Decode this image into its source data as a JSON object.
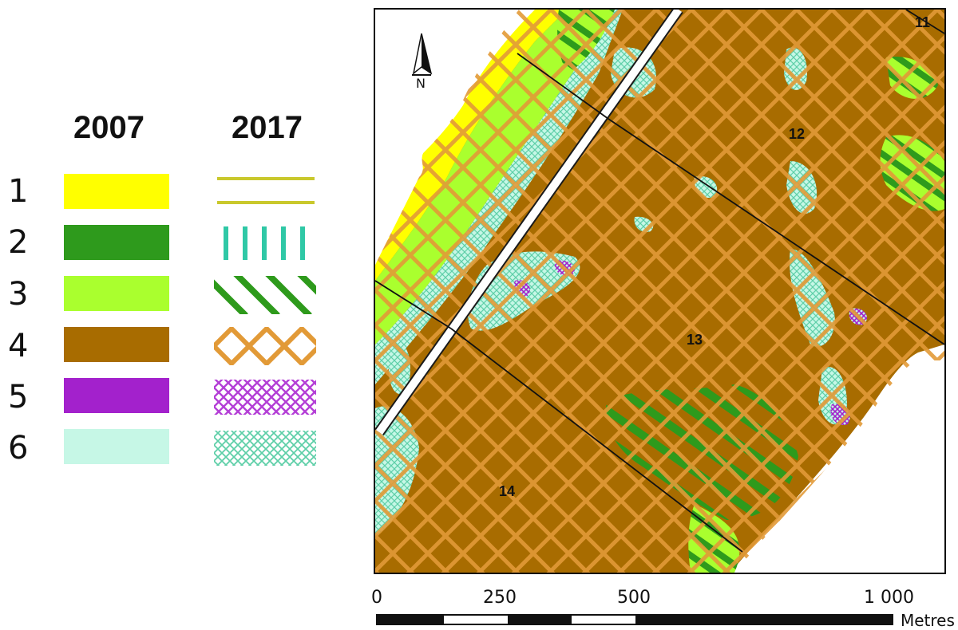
{
  "legend": {
    "year_2007": "2007",
    "year_2017": "2017",
    "classes": [
      {
        "number": "1",
        "color_2007": "#ffff00",
        "pattern_2017": "double-line"
      },
      {
        "number": "2",
        "color_2007": "#2e9a1c",
        "pattern_2017": "vertical-bars"
      },
      {
        "number": "3",
        "color_2007": "#aaff2e",
        "pattern_2017": "diagonal-stripes"
      },
      {
        "number": "4",
        "color_2007": "#a86c00",
        "pattern_2017": "diamond-lattice"
      },
      {
        "number": "5",
        "color_2007": "#a321cc",
        "pattern_2017": "fine-crosshatch"
      },
      {
        "number": "6",
        "color_2007": "#c6f7e6",
        "pattern_2017": "fine-crosshatch"
      }
    ]
  },
  "map": {
    "parcels": [
      "11",
      "12",
      "13",
      "14"
    ],
    "north_label": "N",
    "north_icon": "north-arrow-icon"
  },
  "scale_bar": {
    "ticks": [
      "0",
      "250",
      "500",
      "1 000"
    ],
    "unit": "Metres"
  },
  "colors": {
    "base_brown": "#a86c00",
    "lattice_orange": "#e29a37",
    "cyan_hatch": "#5ecfa8",
    "yellow": "#ffff00",
    "light_green": "#aaff2e",
    "dark_green": "#2e9a1c",
    "purple": "#a321cc",
    "pale_cyan": "#c6f7e6"
  }
}
